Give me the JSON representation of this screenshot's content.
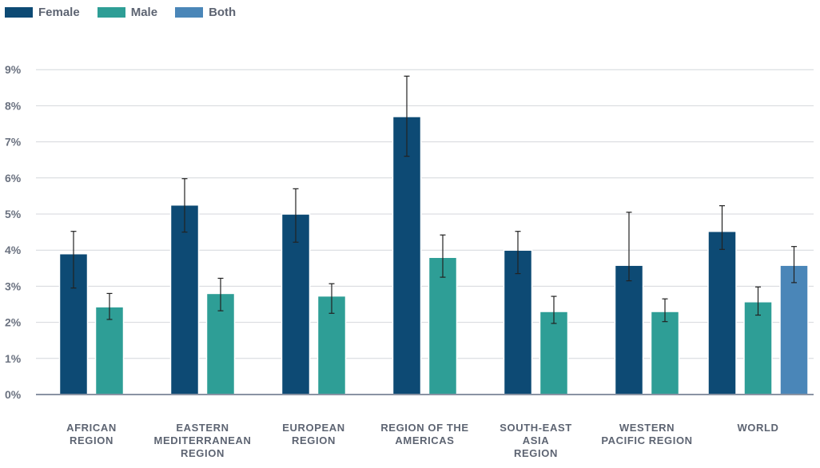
{
  "chart_data": {
    "type": "bar",
    "title": "",
    "xlabel": "",
    "ylabel": "",
    "ylim": [
      0,
      9
    ],
    "y_ticks": [
      "0%",
      "1%",
      "2%",
      "3%",
      "4%",
      "5%",
      "6%",
      "7%",
      "8%",
      "9%"
    ],
    "grid": true,
    "legend_position": "top-left",
    "categories": [
      [
        "AFRICAN",
        "REGION"
      ],
      [
        "EASTERN",
        "MEDITERRANEAN",
        "REGION"
      ],
      [
        "EUROPEAN",
        "REGION"
      ],
      [
        "REGION OF THE",
        "AMERICAS"
      ],
      [
        "SOUTH-EAST",
        "ASIA",
        "REGION"
      ],
      [
        "WESTERN",
        "PACIFIC REGION"
      ],
      [
        "WORLD"
      ]
    ],
    "series": [
      {
        "name": "Female",
        "color": "#0d4a74",
        "values": [
          3.9,
          5.25,
          5.0,
          7.7,
          4.0,
          3.58,
          4.52
        ],
        "error_low": [
          2.95,
          4.5,
          4.22,
          6.6,
          3.35,
          3.15,
          4.02
        ],
        "error_high": [
          4.52,
          5.98,
          5.7,
          8.82,
          4.52,
          5.05,
          5.23
        ]
      },
      {
        "name": "Male",
        "color": "#2e9e96",
        "values": [
          2.43,
          2.8,
          2.73,
          3.8,
          2.3,
          2.3,
          2.57
        ],
        "error_low": [
          2.08,
          2.32,
          2.25,
          3.25,
          1.97,
          2.02,
          2.2
        ],
        "error_high": [
          2.8,
          3.22,
          3.07,
          4.42,
          2.72,
          2.65,
          2.98
        ]
      },
      {
        "name": "Both",
        "color": "#4a86b8",
        "values": [
          null,
          null,
          null,
          null,
          null,
          null,
          3.58
        ],
        "error_low": [
          null,
          null,
          null,
          null,
          null,
          null,
          3.1
        ],
        "error_high": [
          null,
          null,
          null,
          null,
          null,
          null,
          4.1
        ]
      }
    ]
  }
}
